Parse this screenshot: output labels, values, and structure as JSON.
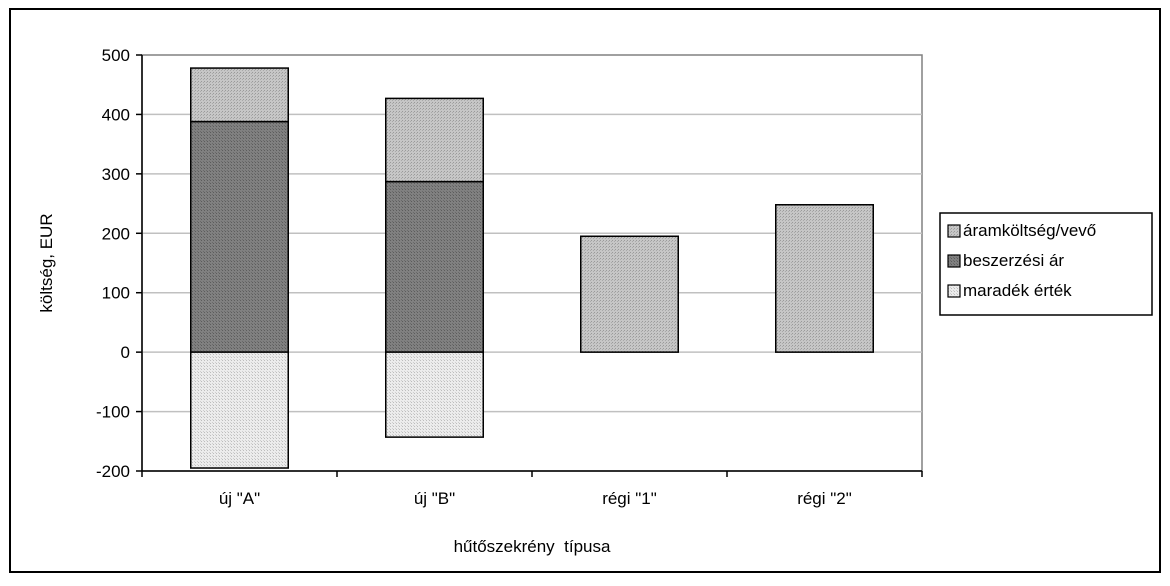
{
  "chart_data": {
    "type": "bar",
    "stacked": true,
    "categories": [
      "új \"A\"",
      "új \"B\"",
      "régi \"1\"",
      "régi \"2\""
    ],
    "series": [
      {
        "name": "áramköltség/vevő",
        "values": [
          90,
          140,
          195,
          248
        ],
        "color": "#c0c0c0"
      },
      {
        "name": "beszerzési ár",
        "values": [
          388,
          287,
          0,
          0
        ],
        "color": "#7f7f7f"
      },
      {
        "name": "maradék érték",
        "values": [
          -195,
          -143,
          0,
          0
        ],
        "color": "#e6e6e6"
      }
    ],
    "xlabel": "hűtőszekrény  típusa",
    "ylabel": "költség, EUR",
    "ylim": [
      -200,
      500
    ],
    "yticks": [
      "500",
      "400",
      "300",
      "200",
      "100",
      "0",
      "-100",
      "-200"
    ],
    "ytick_values": [
      500,
      400,
      300,
      200,
      100,
      0,
      -100,
      -200
    ],
    "grid": true,
    "legend_position": "right"
  }
}
